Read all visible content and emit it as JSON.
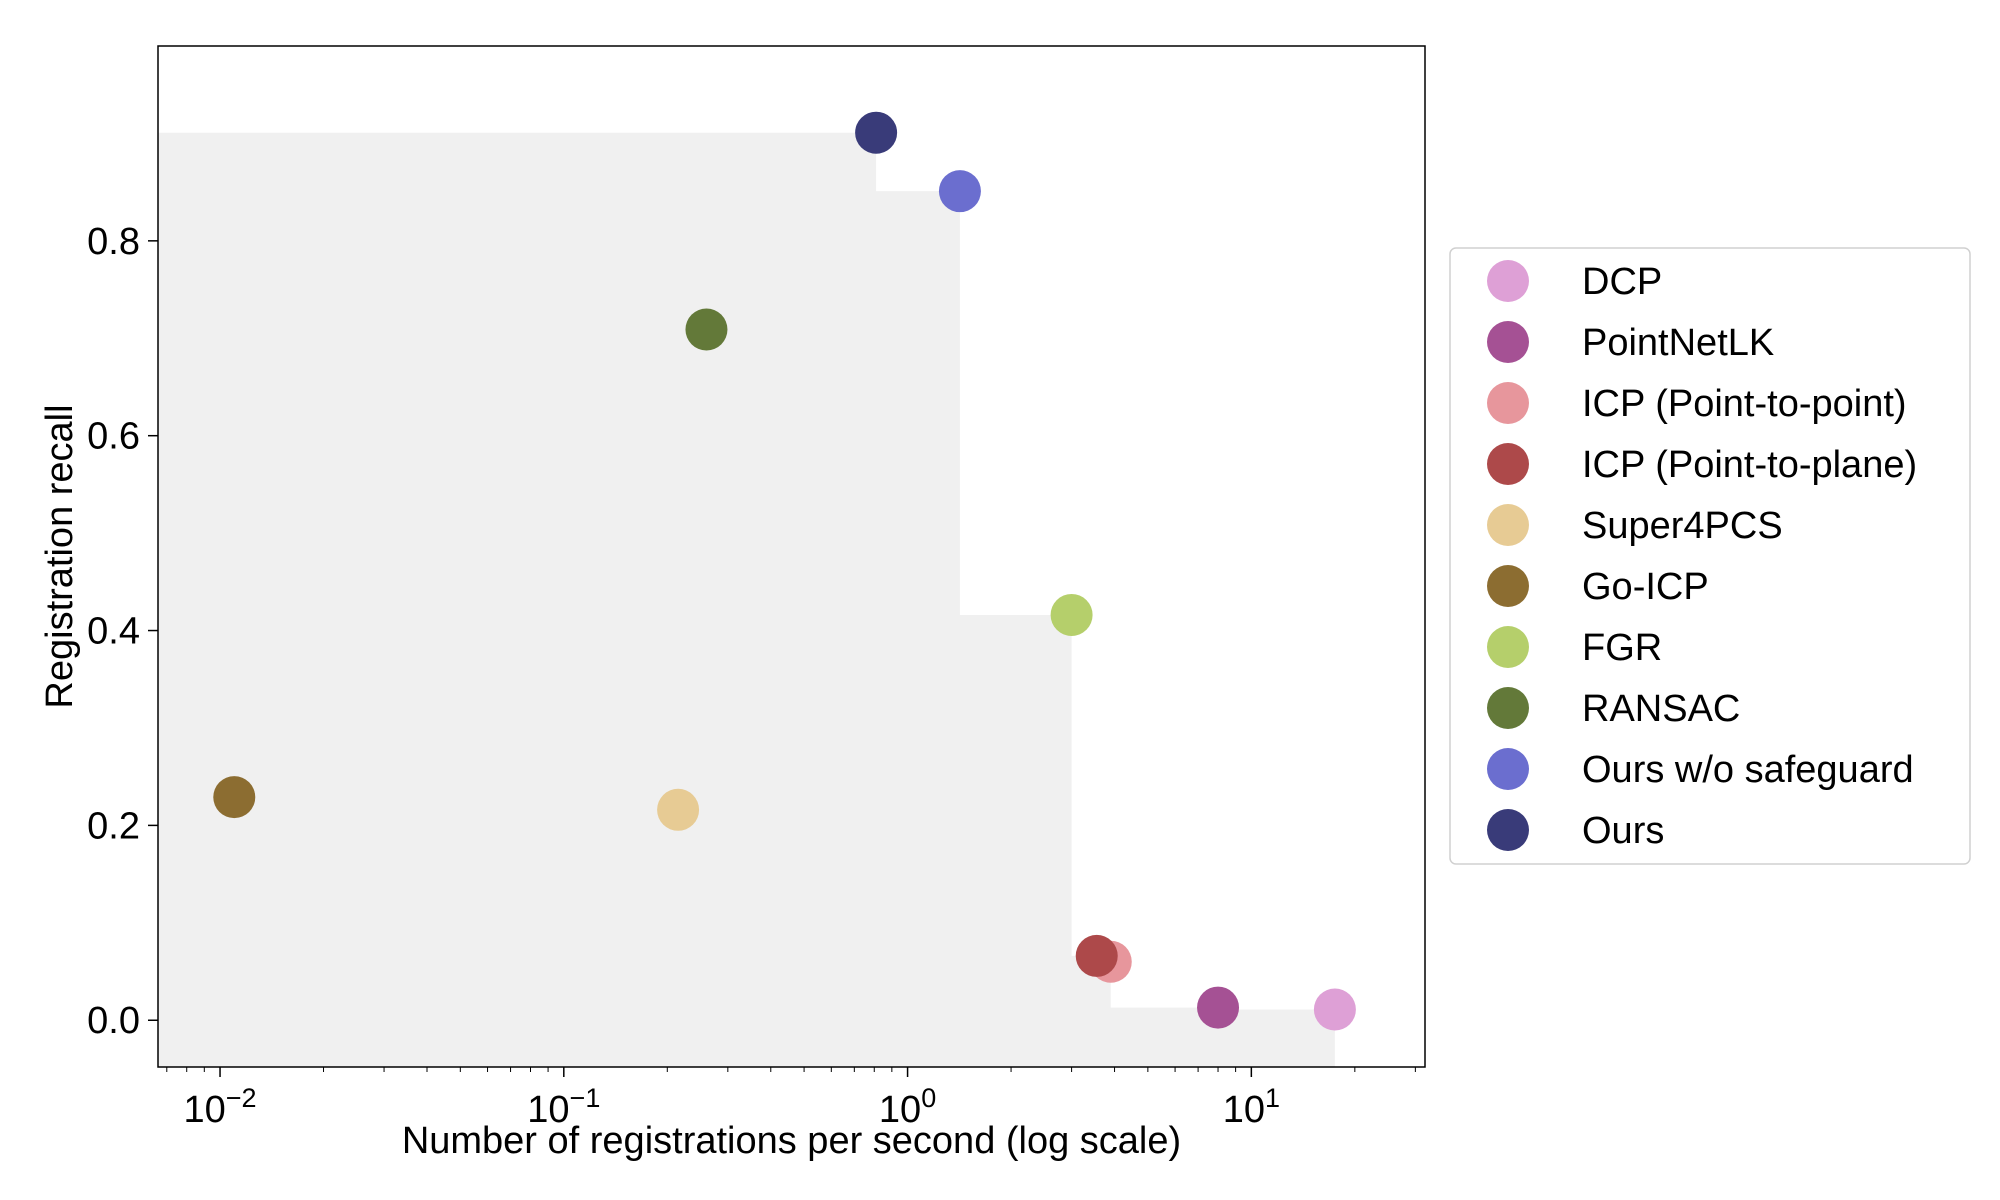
{
  "chart_data": {
    "type": "scatter",
    "title": "",
    "xlabel": "Number of registrations per second (log scale)",
    "ylabel": "Registration recall",
    "x_scale": "log",
    "xlim": [
      0.0066,
      32
    ],
    "ylim": [
      -0.048,
      1.0
    ],
    "x_ticks": [
      {
        "value": 0.01,
        "base": "10",
        "exp": "−2"
      },
      {
        "value": 0.1,
        "base": "10",
        "exp": "−1"
      },
      {
        "value": 1,
        "base": "10",
        "exp": "0"
      },
      {
        "value": 10,
        "base": "10",
        "exp": "1"
      }
    ],
    "y_ticks": [
      {
        "value": 0.0,
        "label": "0.0"
      },
      {
        "value": 0.2,
        "label": "0.2"
      },
      {
        "value": 0.4,
        "label": "0.4"
      },
      {
        "value": 0.6,
        "label": "0.6"
      },
      {
        "value": 0.8,
        "label": "0.8"
      }
    ],
    "grid": false,
    "legend_position": "right",
    "frontier_color": "#f0f0f0",
    "series": [
      {
        "name": "DCP",
        "color": "#dea0d6",
        "x": 17.5,
        "y": 0.011
      },
      {
        "name": "PointNetLK",
        "color": "#a55194",
        "x": 8.0,
        "y": 0.013
      },
      {
        "name": "ICP (Point-to-point)",
        "color": "#e7969c",
        "x": 3.9,
        "y": 0.06
      },
      {
        "name": "ICP (Point-to-plane)",
        "color": "#ad494a",
        "x": 3.55,
        "y": 0.066
      },
      {
        "name": "Super4PCS",
        "color": "#e7cb94",
        "x": 0.215,
        "y": 0.216
      },
      {
        "name": "Go-ICP",
        "color": "#8c6d31",
        "x": 0.011,
        "y": 0.229
      },
      {
        "name": "FGR",
        "color": "#b5cf6b",
        "x": 3.0,
        "y": 0.416
      },
      {
        "name": "RANSAC",
        "color": "#637939",
        "x": 0.26,
        "y": 0.709
      },
      {
        "name": "Ours w/o safeguard",
        "color": "#6b6ecf",
        "x": 1.42,
        "y": 0.851
      },
      {
        "name": "Ours",
        "color": "#393b79",
        "x": 0.81,
        "y": 0.911
      }
    ]
  }
}
